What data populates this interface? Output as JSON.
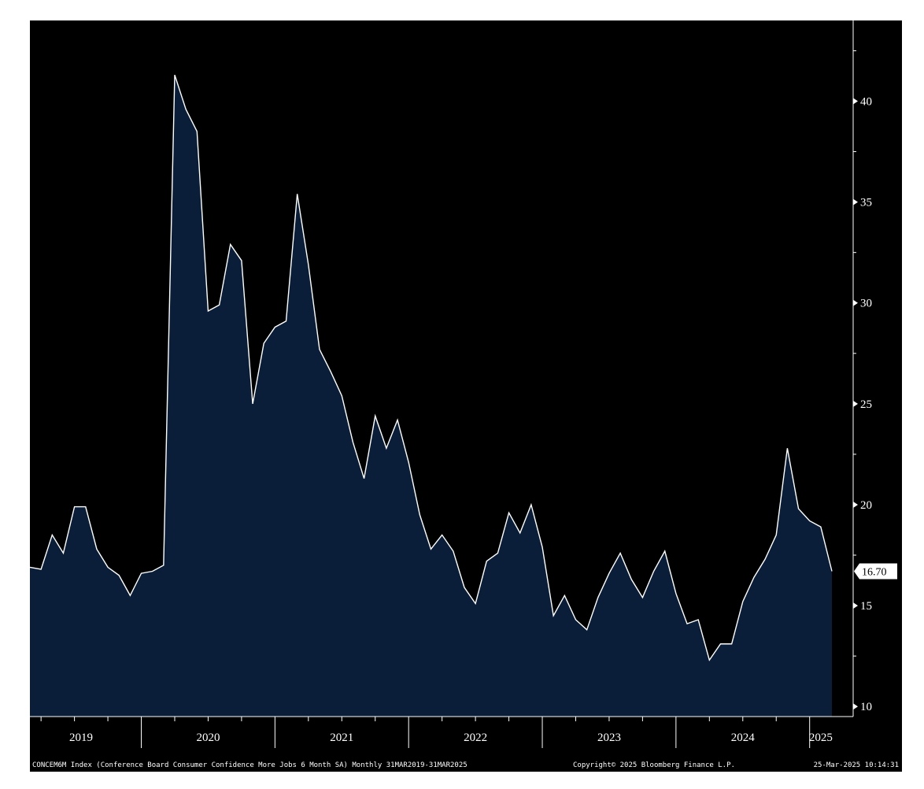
{
  "footer": {
    "description": "CONCEM6M Index (Conference Board Consumer Confidence More Jobs 6 Month SA) Monthly 31MAR2019-31MAR2025",
    "copyright": "Copyright© 2025 Bloomberg Finance L.P.",
    "timestamp": "25-Mar-2025 10:14:31"
  },
  "colors": {
    "background": "#000000",
    "area_fill": "#0a1e3a",
    "line": "#ffffff",
    "axis": "#ffffff"
  },
  "chart_data": {
    "type": "area",
    "x_axis_years": [
      "2019",
      "2020",
      "2021",
      "2022",
      "2023",
      "2024",
      "2025"
    ],
    "y_ticks": [
      10,
      15,
      20,
      25,
      30,
      35,
      40
    ],
    "ylim": [
      9.5,
      44
    ],
    "grid": false,
    "last_value_label": "16.70",
    "series": [
      {
        "x": [
          "2019-03",
          "2019-04",
          "2019-05",
          "2019-06",
          "2019-07",
          "2019-08",
          "2019-09",
          "2019-10",
          "2019-11",
          "2019-12",
          "2020-01",
          "2020-02",
          "2020-03",
          "2020-04",
          "2020-05",
          "2020-06",
          "2020-07",
          "2020-08",
          "2020-09",
          "2020-10",
          "2020-11",
          "2020-12",
          "2021-01",
          "2021-02",
          "2021-03",
          "2021-04",
          "2021-05",
          "2021-06",
          "2021-07",
          "2021-08",
          "2021-09",
          "2021-10",
          "2021-11",
          "2021-12",
          "2022-01",
          "2022-02",
          "2022-03",
          "2022-04",
          "2022-05",
          "2022-06",
          "2022-07",
          "2022-08",
          "2022-09",
          "2022-10",
          "2022-11",
          "2022-12",
          "2023-01",
          "2023-02",
          "2023-03",
          "2023-04",
          "2023-05",
          "2023-06",
          "2023-07",
          "2023-08",
          "2023-09",
          "2023-10",
          "2023-11",
          "2023-12",
          "2024-01",
          "2024-02",
          "2024-03",
          "2024-04",
          "2024-05",
          "2024-06",
          "2024-07",
          "2024-08",
          "2024-09",
          "2024-10",
          "2024-11",
          "2024-12",
          "2025-01",
          "2025-02",
          "2025-03"
        ],
        "values": [
          16.9,
          16.8,
          18.5,
          17.6,
          19.9,
          19.9,
          17.8,
          16.9,
          16.5,
          15.5,
          16.6,
          16.7,
          17.0,
          41.3,
          39.6,
          38.5,
          29.6,
          29.9,
          32.9,
          32.1,
          25.0,
          28.0,
          28.8,
          29.1,
          35.4,
          31.9,
          27.7,
          26.6,
          25.4,
          23.1,
          21.3,
          24.4,
          22.8,
          24.2,
          22.1,
          19.5,
          17.8,
          18.5,
          17.7,
          15.9,
          15.1,
          17.2,
          17.6,
          19.6,
          18.6,
          20.0,
          17.9,
          14.5,
          15.5,
          14.3,
          13.8,
          15.4,
          16.6,
          17.6,
          16.3,
          15.4,
          16.7,
          17.7,
          15.6,
          14.1,
          14.3,
          12.3,
          13.1,
          13.1,
          15.2,
          16.4,
          17.3,
          18.5,
          22.8,
          19.8,
          19.2,
          18.9,
          16.7
        ]
      }
    ]
  }
}
